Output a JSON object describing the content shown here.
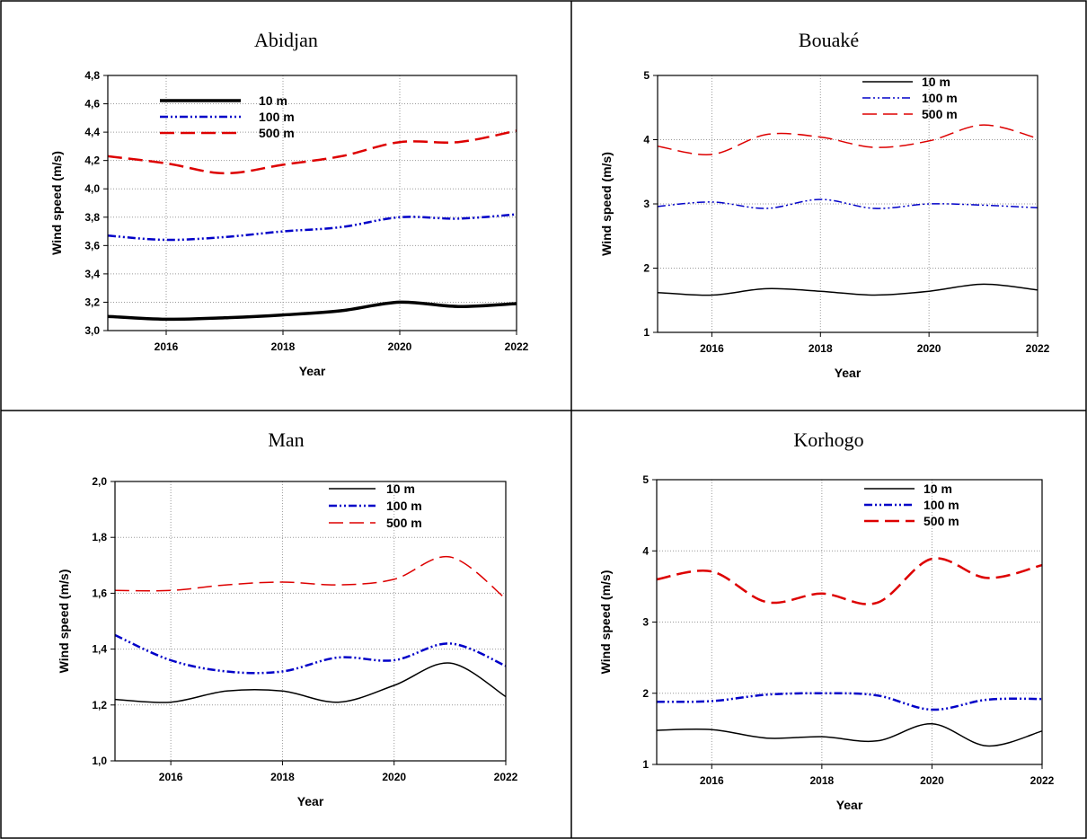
{
  "chart_data": [
    {
      "type": "line",
      "title": "Abidjan",
      "xlabel": "Year",
      "ylabel": "Wind speed (m/s)",
      "xlim": [
        2015,
        2022
      ],
      "ylim": [
        3.0,
        4.8
      ],
      "xticks": [
        2016,
        2018,
        2020,
        2022
      ],
      "yticks": [
        3.0,
        3.2,
        3.4,
        3.6,
        3.8,
        4.0,
        4.2,
        4.4,
        4.6,
        4.8
      ],
      "ytick_labels": [
        "3,0",
        "3,2",
        "3,4",
        "3,6",
        "3,8",
        "4,0",
        "4,2",
        "4,4",
        "4,6",
        "4,8"
      ],
      "grid": true,
      "legend": "top-left",
      "x": [
        2015,
        2016,
        2017,
        2018,
        2019,
        2020,
        2021,
        2022
      ],
      "series": [
        {
          "name": "10 m",
          "values": [
            3.1,
            3.08,
            3.09,
            3.11,
            3.14,
            3.2,
            3.17,
            3.19
          ],
          "color": "#000000",
          "style": "solid",
          "width": 3.5
        },
        {
          "name": "100 m",
          "values": [
            3.67,
            3.64,
            3.66,
            3.7,
            3.73,
            3.8,
            3.79,
            3.82
          ],
          "color": "#0000c8",
          "style": "dashdotdot",
          "width": 2.5
        },
        {
          "name": "500 m",
          "values": [
            4.23,
            4.18,
            4.11,
            4.17,
            4.23,
            4.33,
            4.33,
            4.41
          ],
          "color": "#dd0000",
          "style": "dashed",
          "width": 2.5
        }
      ]
    },
    {
      "type": "line",
      "title": "Bouaké",
      "xlabel": "Year",
      "ylabel": "Wind speed (m/s)",
      "xlim": [
        2015,
        2022
      ],
      "ylim": [
        1,
        5
      ],
      "xticks": [
        2016,
        2018,
        2020,
        2022
      ],
      "yticks": [
        1,
        2,
        3,
        4,
        5
      ],
      "ytick_labels": [
        "1",
        "2",
        "3",
        "4",
        "5"
      ],
      "grid": true,
      "legend": "top-right",
      "x": [
        2015,
        2016,
        2017,
        2018,
        2019,
        2020,
        2021,
        2022
      ],
      "series": [
        {
          "name": "10 m",
          "values": [
            1.62,
            1.58,
            1.68,
            1.64,
            1.58,
            1.64,
            1.75,
            1.66
          ],
          "color": "#000000",
          "style": "solid",
          "width": 1.5
        },
        {
          "name": "100 m",
          "values": [
            2.96,
            3.03,
            2.93,
            3.07,
            2.93,
            3.0,
            2.98,
            2.94
          ],
          "color": "#0000c8",
          "style": "dashdotdot",
          "width": 1.5
        },
        {
          "name": "500 m",
          "values": [
            3.9,
            3.77,
            4.08,
            4.04,
            3.88,
            3.98,
            4.23,
            4.02
          ],
          "color": "#dd0000",
          "style": "dashed",
          "width": 1.5
        }
      ]
    },
    {
      "type": "line",
      "title": "Man",
      "xlabel": "Year",
      "ylabel": "Wind speed (m/s)",
      "xlim": [
        2015,
        2022
      ],
      "ylim": [
        1.0,
        2.0
      ],
      "xticks": [
        2016,
        2018,
        2020,
        2022
      ],
      "yticks": [
        1.0,
        1.2,
        1.4,
        1.6,
        1.8,
        2.0
      ],
      "ytick_labels": [
        "1,0",
        "1,2",
        "1,4",
        "1,6",
        "1,8",
        "2,0"
      ],
      "grid": true,
      "legend": "top-right",
      "x": [
        2015,
        2016,
        2017,
        2018,
        2019,
        2020,
        2021,
        2022
      ],
      "series": [
        {
          "name": "10 m",
          "values": [
            1.22,
            1.21,
            1.25,
            1.25,
            1.21,
            1.27,
            1.35,
            1.23
          ],
          "color": "#000000",
          "style": "solid",
          "width": 1.5
        },
        {
          "name": "100 m",
          "values": [
            1.45,
            1.36,
            1.32,
            1.32,
            1.37,
            1.36,
            1.42,
            1.34
          ],
          "color": "#0000c8",
          "style": "dashdotdot",
          "width": 2.5
        },
        {
          "name": "500 m",
          "values": [
            1.61,
            1.61,
            1.63,
            1.64,
            1.63,
            1.65,
            1.73,
            1.58
          ],
          "color": "#dd0000",
          "style": "dashed",
          "width": 1.5
        }
      ]
    },
    {
      "type": "line",
      "title": "Korhogo",
      "xlabel": "Year",
      "ylabel": "Wind speed (m/s)",
      "xlim": [
        2015,
        2022
      ],
      "ylim": [
        1,
        5
      ],
      "xticks": [
        2016,
        2018,
        2020,
        2022
      ],
      "yticks": [
        1,
        2,
        3,
        4,
        5
      ],
      "ytick_labels": [
        "1",
        "2",
        "3",
        "4",
        "5"
      ],
      "grid": true,
      "legend": "top-right",
      "x": [
        2015,
        2016,
        2017,
        2018,
        2019,
        2020,
        2021,
        2022
      ],
      "series": [
        {
          "name": "10 m",
          "values": [
            1.48,
            1.49,
            1.37,
            1.39,
            1.33,
            1.57,
            1.26,
            1.47
          ],
          "color": "#000000",
          "style": "solid",
          "width": 1.5
        },
        {
          "name": "100 m",
          "values": [
            1.88,
            1.89,
            1.98,
            2.0,
            1.97,
            1.77,
            1.91,
            1.92
          ],
          "color": "#0000c8",
          "style": "dashdotdot",
          "width": 2.5
        },
        {
          "name": "500 m",
          "values": [
            3.6,
            3.71,
            3.28,
            3.4,
            3.27,
            3.89,
            3.62,
            3.8
          ],
          "color": "#dd0000",
          "style": "dashed",
          "width": 2.5
        }
      ]
    }
  ]
}
